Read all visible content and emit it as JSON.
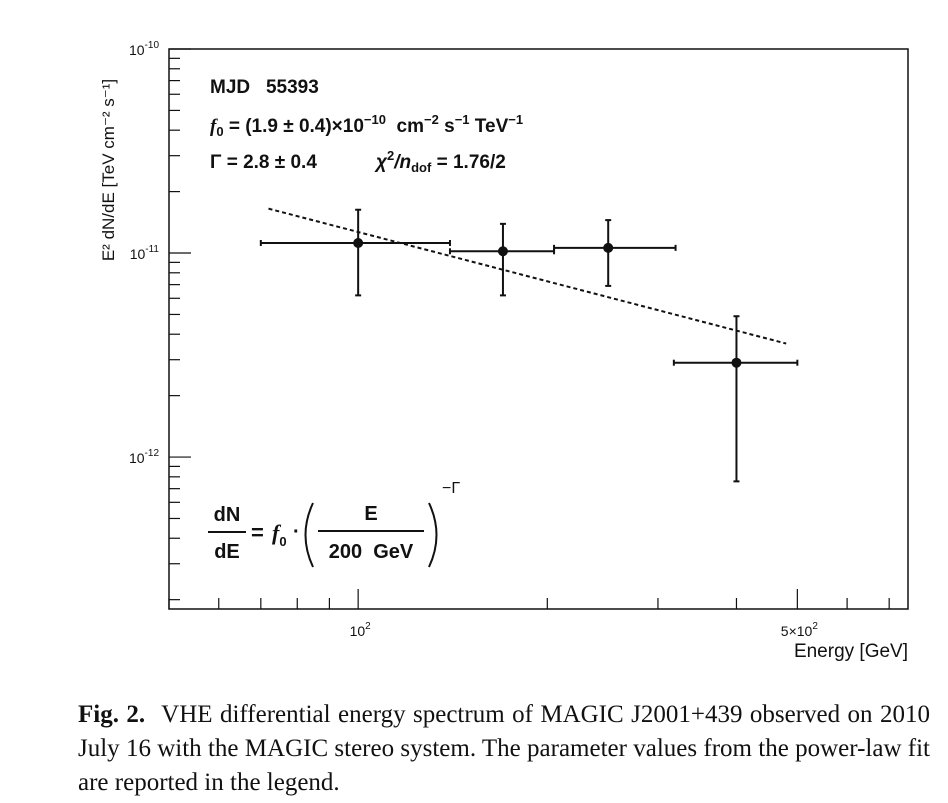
{
  "chart_data": {
    "type": "scatter",
    "xlabel": "Energy [GeV]",
    "ylabel": "E² dN/dE [TeV cm⁻² s⁻¹]",
    "xscale": "log",
    "yscale": "log",
    "xlim": [
      50,
      750
    ],
    "ylim": [
      1.8e-13,
      1e-10
    ],
    "x_tick_labels": [
      {
        "value": 100,
        "base": "10",
        "exp": "2"
      },
      {
        "value": 500,
        "base": "5×10",
        "exp": "2"
      }
    ],
    "y_tick_labels": [
      {
        "value": 1e-10,
        "base": "10",
        "exp": "-10"
      },
      {
        "value": 1e-11,
        "base": "10",
        "exp": "-11"
      },
      {
        "value": 1e-12,
        "base": "10",
        "exp": "-12"
      }
    ],
    "grid": false,
    "points": [
      {
        "x": 100,
        "y": 1.12e-11,
        "x_low": 70,
        "x_high": 140,
        "y_low": 6.2e-12,
        "y_high": 1.63e-11
      },
      {
        "x": 170,
        "y": 1.02e-11,
        "x_low": 140,
        "x_high": 205,
        "y_low": 6.2e-12,
        "y_high": 1.39e-11
      },
      {
        "x": 250,
        "y": 1.06e-11,
        "x_low": 205,
        "x_high": 320,
        "y_low": 6.9e-12,
        "y_high": 1.45e-11
      },
      {
        "x": 400,
        "y": 2.9e-12,
        "x_low": 318,
        "x_high": 500,
        "y_low": 7.6e-13,
        "y_high": 4.9e-12
      }
    ],
    "fit": {
      "style": "dashed",
      "x": [
        72,
        480
      ],
      "y": [
        1.65e-11,
        3.6e-12
      ]
    },
    "annotations": {
      "mjd": "MJD   55393",
      "f0": {
        "symbol": "f",
        "sub": "0",
        "value": " = (1.9 ± 0.4)×10",
        "exp": "−10",
        "units_a": "  cm",
        "units_a_exp": "−2",
        "units_b": " s",
        "units_b_exp": "−1",
        "units_c": " TeV",
        "units_c_exp": "−1"
      },
      "gamma": "Γ = 2.8 ± 0.4",
      "chi2": {
        "chi": "χ",
        "chi_exp": "2",
        "slash": "/n",
        "sub": "dof",
        "value": " = 1.76/2"
      },
      "formula": {
        "lhs_num": "dN",
        "lhs_den": "dE",
        "equals": "=",
        "f": "f",
        "f_sub": "0",
        "dot": "·",
        "rhs_num": "E",
        "rhs_den": "200  GeV",
        "exponent": "−Γ"
      }
    }
  },
  "caption": {
    "label": "Fig. 2.",
    "text": "VHE differential energy spectrum of MAGIC J2001+439 observed on 2010 July 16 with the MAGIC stereo system. The parameter values from the power-law fit are reported in the legend."
  }
}
